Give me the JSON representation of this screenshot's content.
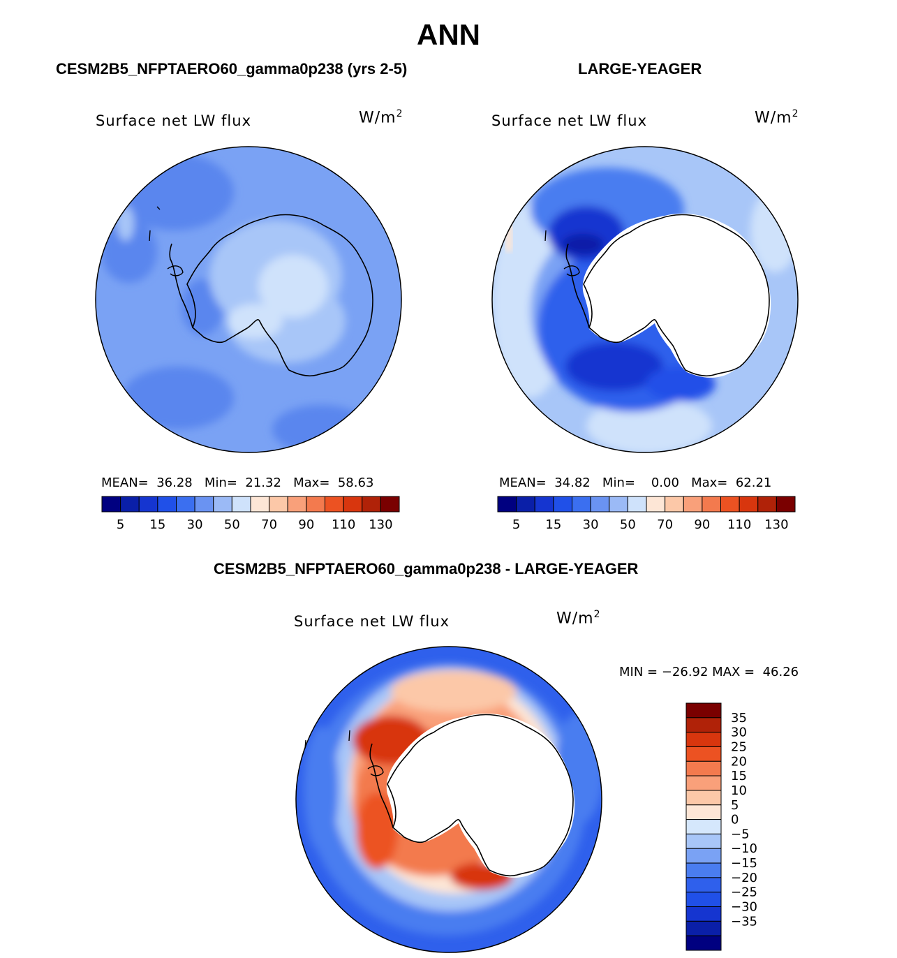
{
  "page_title": "ANN",
  "panels": [
    {
      "case": "CESM2B5_NFPTAERO60_gamma0p238 (yrs 2-5)",
      "variable": "Surface net LW flux",
      "units_base": "W/m",
      "units_exp": "2",
      "stats": {
        "mean_label": "MEAN=",
        "mean": "36.28",
        "min_label": "Min=",
        "min": "21.32",
        "max_label": "Max=",
        "max": "58.63"
      }
    },
    {
      "case": "LARGE-YEAGER",
      "variable": "Surface net LW flux",
      "units_base": "W/m",
      "units_exp": "2",
      "stats": {
        "mean_label": "MEAN=",
        "mean": "34.82",
        "min_label": "Min=",
        "min": "0.00",
        "max_label": "Max=",
        "max": "62.21"
      }
    }
  ],
  "diff_panel": {
    "case": "CESM2B5_NFPTAERO60_gamma0p238 - LARGE-YEAGER",
    "variable": "Surface net LW flux",
    "units_base": "W/m",
    "units_exp": "2",
    "minmax": "MIN = −26.92 MAX =  46.26"
  },
  "colorbar_abs": {
    "colors": [
      "#000080",
      "#0a1fa8",
      "#1535d0",
      "#2050e8",
      "#3b6ff0",
      "#6a93f2",
      "#9bbaf6",
      "#cfe2fb",
      "#fde6d6",
      "#fcc8a8",
      "#f9a07a",
      "#f37a4e",
      "#ec5222",
      "#d8360e",
      "#b02208",
      "#7a0000"
    ],
    "tick_labels": [
      "5",
      "15",
      "30",
      "50",
      "70",
      "90",
      "110",
      "130"
    ]
  },
  "colorbar_diff": {
    "colors": [
      "#000080",
      "#0a1fa8",
      "#1535d0",
      "#2050e8",
      "#2f60ec",
      "#4a7df0",
      "#7aa2f4",
      "#a8c6f8",
      "#d5e7fc",
      "#fde6d6",
      "#fcc8a8",
      "#f9a07a",
      "#f37a4e",
      "#ec5222",
      "#d8360e",
      "#b02208",
      "#7a0000"
    ],
    "tick_labels": [
      "35",
      "30",
      "25",
      "20",
      "15",
      "10",
      "5",
      "0",
      "−5",
      "−10",
      "−15",
      "−20",
      "−25",
      "−30",
      "−35"
    ]
  }
}
